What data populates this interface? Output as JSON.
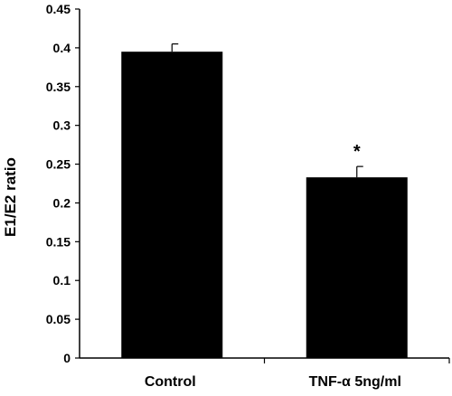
{
  "chart_data": {
    "type": "bar",
    "categories": [
      "Control",
      "TNF-α 5ng/ml"
    ],
    "values": [
      0.395,
      0.233
    ],
    "errors": [
      0.01,
      0.014
    ],
    "annotations": [
      "",
      "*"
    ],
    "ylabel": "E1/E2 ratio",
    "xlabel": "",
    "ylim": [
      0,
      0.45
    ],
    "yticks": [
      0,
      0.05,
      0.1,
      0.15,
      0.2,
      0.25,
      0.3,
      0.35,
      0.4,
      0.45
    ],
    "ytick_labels": [
      "0",
      "0.05",
      "0.1",
      "0.15",
      "0.2",
      "0.25",
      "0.3",
      "0.35",
      "0.4",
      "0.45"
    ],
    "grid": false,
    "bar_color": "#000000"
  }
}
